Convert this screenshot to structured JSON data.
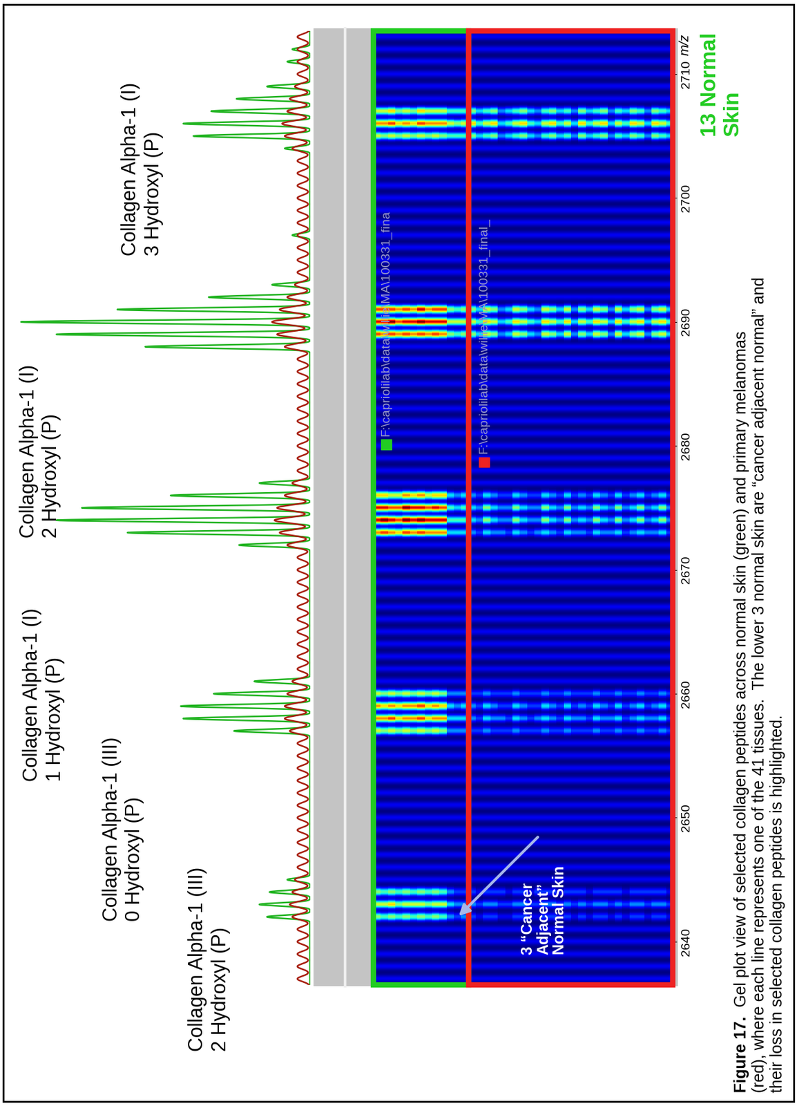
{
  "chart_data": {
    "type": "spectrum",
    "x_label": "m/z",
    "xlim": [
      2636.5,
      2713.5
    ],
    "xticks": [
      2640,
      2650,
      2660,
      2670,
      2680,
      2690,
      2700,
      2710
    ],
    "ylim": [
      0,
      120
    ],
    "tick_labels": "x",
    "annotations": [
      {
        "lines": [
          "Collagen Alpha-1 (III)",
          "2 Hydroxyl (P)"
        ]
      },
      {
        "lines": [
          "Collagen Alpha-1 (III)",
          "0 Hydroxyl (P)"
        ]
      },
      {
        "lines": [
          "Collagen Alpha-1 (I)",
          "1 Hydroxyl (P)"
        ]
      },
      {
        "lines": [
          "Collagen Alpha-1 (I)",
          "2 Hydroxyl (P)"
        ]
      },
      {
        "lines": [
          "Collagen Alpha-1 (I)",
          "3 Hydroxyl (P)"
        ]
      }
    ],
    "series": [
      {
        "name": "normal skin",
        "color": "#22b422",
        "x": [
          2642,
          2643,
          2644,
          2645,
          2657,
          2658,
          2659,
          2660,
          2661,
          2672,
          2673,
          2674,
          2675,
          2676,
          2677,
          2688,
          2689,
          2690,
          2691,
          2692,
          2693,
          2697,
          2704,
          2705,
          2706,
          2707,
          2708,
          2709,
          2711,
          2712
        ],
        "values": [
          17,
          20,
          16,
          9,
          30,
          50,
          51,
          38,
          22,
          28,
          72,
          100,
          90,
          55,
          20,
          65,
          100,
          114,
          76,
          40,
          15,
          7,
          10,
          46,
          50,
          39,
          29,
          17,
          9,
          7
        ]
      },
      {
        "name": "primary melanomas",
        "color": "#a8200f",
        "x": [
          2637,
          2638,
          2639,
          2640,
          2641,
          2642,
          2643,
          2644,
          2645,
          2646,
          2647,
          2648,
          2649,
          2650,
          2651,
          2652,
          2653,
          2654,
          2655,
          2656,
          2657,
          2658,
          2659,
          2660,
          2661,
          2662,
          2663,
          2664,
          2665,
          2666,
          2667,
          2668,
          2669,
          2670,
          2671,
          2672,
          2673,
          2674,
          2675,
          2676,
          2677,
          2678,
          2679,
          2680,
          2681,
          2682,
          2683,
          2684,
          2685,
          2686,
          2687,
          2688,
          2689,
          2690,
          2691,
          2692,
          2693,
          2694,
          2695,
          2696,
          2697,
          2698,
          2699,
          2700,
          2701,
          2702,
          2703,
          2704,
          2705,
          2706,
          2707,
          2708,
          2709,
          2710,
          2711,
          2712,
          2713
        ],
        "values": [
          5,
          5,
          5,
          5,
          5,
          7,
          8,
          7,
          6,
          5,
          5,
          5,
          5,
          5,
          5,
          5,
          5,
          5,
          5,
          5,
          8,
          10,
          10,
          9,
          7,
          5,
          5,
          5,
          5,
          5,
          5,
          5,
          5,
          5,
          5,
          9,
          12,
          14,
          13,
          10,
          7,
          5,
          5,
          5,
          5,
          5,
          5,
          5,
          5,
          5,
          5,
          10,
          13,
          15,
          12,
          9,
          6,
          5,
          5,
          5,
          5,
          5,
          5,
          5,
          5,
          5,
          5,
          7,
          10,
          11,
          9,
          8,
          6,
          5,
          5,
          5,
          5
        ]
      }
    ],
    "gel": {
      "groups": [
        {
          "lines": [
            "13 Normal",
            "Skin"
          ],
          "color": "#22cc22",
          "count": 13
        },
        {
          "color": "#ee2222",
          "count": 28
        }
      ],
      "callout": {
        "lines": [
          "3 “Cancer",
          "Adjacent”",
          "Normal Skin"
        ],
        "count": 3
      },
      "path_labels": [
        "F:\\capriolilab\\data\\willie\\MA\\100331_fina",
        "F:\\capriolilab\\data\\willie\\MA\\100331_final_"
      ],
      "color_range": [
        0,
        1.2
      ],
      "band_x": [
        2642,
        2643,
        2644,
        2657,
        2658,
        2659,
        2660,
        2673,
        2674,
        2675,
        2676,
        2689,
        2690,
        2691,
        2705,
        2706,
        2707
      ],
      "cells": [
        [
          0.5,
          0.6,
          0.5,
          0.6,
          0.8,
          0.8,
          0.6,
          0.8,
          1.0,
          1.0,
          0.7,
          0.9,
          1.0,
          0.9,
          0.6,
          0.8,
          0.6
        ],
        [
          0.4,
          0.6,
          0.4,
          0.5,
          0.8,
          0.7,
          0.5,
          0.9,
          1.1,
          1.0,
          0.7,
          0.8,
          1.0,
          0.9,
          0.5,
          0.8,
          0.6
        ],
        [
          0.5,
          0.7,
          0.5,
          0.6,
          0.9,
          0.8,
          0.6,
          0.8,
          1.0,
          0.9,
          0.6,
          0.9,
          1.1,
          0.9,
          0.6,
          0.9,
          0.7
        ],
        [
          0.4,
          0.5,
          0.4,
          0.5,
          0.7,
          0.7,
          0.5,
          0.7,
          0.9,
          0.9,
          0.6,
          0.8,
          0.9,
          0.8,
          0.5,
          0.7,
          0.5
        ],
        [
          0.5,
          0.6,
          0.5,
          0.6,
          0.8,
          0.8,
          0.6,
          0.9,
          1.1,
          1.1,
          0.8,
          0.9,
          1.0,
          0.9,
          0.6,
          0.8,
          0.6
        ],
        [
          0.4,
          0.6,
          0.4,
          0.5,
          0.8,
          0.8,
          0.5,
          0.8,
          1.0,
          1.0,
          0.7,
          0.8,
          1.0,
          0.8,
          0.5,
          0.7,
          0.5
        ],
        [
          0.5,
          0.6,
          0.5,
          0.6,
          0.9,
          0.9,
          0.6,
          0.9,
          1.1,
          1.0,
          0.8,
          0.9,
          1.1,
          1.0,
          0.6,
          0.9,
          0.7
        ],
        [
          0.4,
          0.5,
          0.4,
          0.5,
          0.7,
          0.7,
          0.5,
          0.8,
          1.0,
          0.9,
          0.6,
          0.8,
          1.0,
          0.8,
          0.5,
          0.8,
          0.6
        ],
        [
          0.5,
          0.6,
          0.5,
          0.6,
          0.8,
          0.8,
          0.6,
          0.8,
          1.0,
          1.0,
          0.7,
          0.9,
          1.0,
          0.9,
          0.6,
          0.8,
          0.6
        ],
        [
          0.4,
          0.6,
          0.4,
          0.5,
          0.8,
          0.7,
          0.5,
          0.8,
          1.0,
          0.9,
          0.7,
          0.8,
          1.0,
          0.9,
          0.5,
          0.8,
          0.6
        ],
        [
          0.2,
          0.3,
          0.2,
          0.2,
          0.3,
          0.3,
          0.2,
          0.3,
          0.4,
          0.4,
          0.3,
          0.5,
          0.6,
          0.5,
          0.4,
          0.6,
          0.4
        ],
        [
          0.1,
          0.2,
          0.1,
          0.2,
          0.3,
          0.2,
          0.2,
          0.3,
          0.4,
          0.3,
          0.2,
          0.4,
          0.6,
          0.4,
          0.4,
          0.5,
          0.4
        ],
        [
          0.2,
          0.2,
          0.1,
          0.2,
          0.3,
          0.3,
          0.2,
          0.3,
          0.4,
          0.4,
          0.3,
          0.5,
          0.6,
          0.5,
          0.4,
          0.6,
          0.4
        ],
        [
          0.1,
          0.2,
          0.1,
          0.1,
          0.2,
          0.2,
          0.1,
          0.2,
          0.3,
          0.3,
          0.2,
          0.5,
          0.6,
          0.5,
          0.5,
          0.7,
          0.5
        ],
        [
          0.0,
          0.1,
          0.0,
          0.1,
          0.1,
          0.1,
          0.1,
          0.1,
          0.2,
          0.2,
          0.1,
          0.3,
          0.4,
          0.3,
          0.3,
          0.4,
          0.3
        ],
        [
          0.1,
          0.2,
          0.1,
          0.2,
          0.3,
          0.3,
          0.2,
          0.3,
          0.5,
          0.5,
          0.3,
          0.6,
          0.7,
          0.6,
          0.4,
          0.6,
          0.4
        ],
        [
          0.1,
          0.2,
          0.1,
          0.1,
          0.2,
          0.2,
          0.1,
          0.2,
          0.3,
          0.3,
          0.2,
          0.5,
          0.6,
          0.5,
          0.5,
          0.7,
          0.5
        ],
        [
          0.0,
          0.1,
          0.1,
          0.1,
          0.2,
          0.1,
          0.1,
          0.2,
          0.2,
          0.2,
          0.1,
          0.2,
          0.3,
          0.2,
          0.2,
          0.3,
          0.2
        ],
        [
          0.0,
          0.1,
          0.0,
          0.1,
          0.1,
          0.1,
          0.1,
          0.1,
          0.2,
          0.2,
          0.1,
          0.3,
          0.4,
          0.3,
          0.3,
          0.4,
          0.3
        ],
        [
          0.1,
          0.2,
          0.1,
          0.2,
          0.3,
          0.3,
          0.2,
          0.3,
          0.5,
          0.5,
          0.3,
          0.6,
          0.7,
          0.6,
          0.4,
          0.6,
          0.4
        ],
        [
          0.1,
          0.2,
          0.1,
          0.1,
          0.2,
          0.2,
          0.1,
          0.2,
          0.3,
          0.3,
          0.2,
          0.5,
          0.6,
          0.5,
          0.5,
          0.7,
          0.5
        ],
        [
          0.0,
          0.1,
          0.0,
          0.1,
          0.1,
          0.1,
          0.1,
          0.1,
          0.2,
          0.2,
          0.1,
          0.3,
          0.4,
          0.3,
          0.3,
          0.4,
          0.3
        ],
        [
          0.0,
          0.1,
          0.1,
          0.1,
          0.2,
          0.1,
          0.1,
          0.2,
          0.2,
          0.2,
          0.1,
          0.2,
          0.3,
          0.2,
          0.2,
          0.3,
          0.2
        ],
        [
          0.1,
          0.2,
          0.1,
          0.2,
          0.3,
          0.3,
          0.2,
          0.3,
          0.5,
          0.5,
          0.3,
          0.6,
          0.7,
          0.6,
          0.4,
          0.6,
          0.4
        ],
        [
          0.1,
          0.2,
          0.1,
          0.1,
          0.2,
          0.2,
          0.1,
          0.2,
          0.3,
          0.3,
          0.2,
          0.5,
          0.6,
          0.5,
          0.5,
          0.7,
          0.5
        ],
        [
          0.0,
          0.1,
          0.0,
          0.1,
          0.1,
          0.1,
          0.1,
          0.1,
          0.2,
          0.2,
          0.1,
          0.3,
          0.4,
          0.3,
          0.3,
          0.4,
          0.3
        ],
        [
          0.1,
          0.2,
          0.1,
          0.2,
          0.3,
          0.3,
          0.2,
          0.3,
          0.5,
          0.5,
          0.3,
          0.6,
          0.7,
          0.6,
          0.4,
          0.6,
          0.4
        ],
        [
          0.0,
          0.1,
          0.1,
          0.1,
          0.2,
          0.1,
          0.1,
          0.2,
          0.2,
          0.2,
          0.1,
          0.2,
          0.3,
          0.2,
          0.2,
          0.3,
          0.2
        ],
        [
          0.1,
          0.2,
          0.1,
          0.1,
          0.2,
          0.2,
          0.1,
          0.2,
          0.3,
          0.3,
          0.2,
          0.5,
          0.6,
          0.5,
          0.5,
          0.7,
          0.5
        ],
        [
          0.0,
          0.1,
          0.0,
          0.1,
          0.1,
          0.1,
          0.1,
          0.1,
          0.2,
          0.2,
          0.1,
          0.3,
          0.4,
          0.3,
          0.3,
          0.4,
          0.3
        ],
        [
          0.1,
          0.2,
          0.1,
          0.2,
          0.3,
          0.3,
          0.2,
          0.3,
          0.5,
          0.5,
          0.3,
          0.6,
          0.7,
          0.6,
          0.4,
          0.6,
          0.4
        ],
        [
          0.1,
          0.2,
          0.1,
          0.1,
          0.2,
          0.2,
          0.1,
          0.2,
          0.3,
          0.3,
          0.2,
          0.5,
          0.6,
          0.5,
          0.5,
          0.7,
          0.5
        ],
        [
          0.0,
          0.1,
          0.1,
          0.1,
          0.2,
          0.1,
          0.1,
          0.2,
          0.2,
          0.2,
          0.1,
          0.2,
          0.3,
          0.2,
          0.2,
          0.3,
          0.2
        ],
        [
          0.1,
          0.2,
          0.1,
          0.2,
          0.3,
          0.3,
          0.2,
          0.3,
          0.5,
          0.5,
          0.3,
          0.6,
          0.7,
          0.6,
          0.4,
          0.6,
          0.4
        ],
        [
          0.0,
          0.1,
          0.0,
          0.1,
          0.1,
          0.1,
          0.1,
          0.1,
          0.2,
          0.2,
          0.1,
          0.3,
          0.4,
          0.3,
          0.3,
          0.4,
          0.3
        ],
        [
          0.1,
          0.2,
          0.1,
          0.1,
          0.2,
          0.2,
          0.1,
          0.2,
          0.3,
          0.3,
          0.2,
          0.5,
          0.6,
          0.5,
          0.5,
          0.7,
          0.5
        ],
        [
          0.1,
          0.2,
          0.1,
          0.2,
          0.3,
          0.3,
          0.2,
          0.3,
          0.5,
          0.5,
          0.3,
          0.6,
          0.7,
          0.6,
          0.4,
          0.6,
          0.4
        ],
        [
          0.0,
          0.1,
          0.1,
          0.1,
          0.2,
          0.1,
          0.1,
          0.2,
          0.2,
          0.2,
          0.1,
          0.2,
          0.3,
          0.2,
          0.2,
          0.3,
          0.2
        ],
        [
          0.1,
          0.2,
          0.1,
          0.1,
          0.2,
          0.2,
          0.1,
          0.2,
          0.3,
          0.3,
          0.2,
          0.5,
          0.6,
          0.5,
          0.5,
          0.7,
          0.5
        ],
        [
          0.1,
          0.2,
          0.1,
          0.2,
          0.3,
          0.3,
          0.2,
          0.3,
          0.5,
          0.5,
          0.3,
          0.6,
          0.7,
          0.6,
          0.4,
          0.6,
          0.4
        ],
        [
          0.0,
          0.1,
          0.0,
          0.1,
          0.1,
          0.1,
          0.1,
          0.1,
          0.2,
          0.2,
          0.1,
          0.3,
          0.4,
          0.3,
          0.3,
          0.4,
          0.3
        ]
      ]
    },
    "caption": {
      "label": "Figure 17.",
      "lines": [
        "Gel plot view of selected collagen peptides across normal skin (green) and primary melanomas",
        "(red), where each line represents one of the 41 tissues.  The lower 3 normal skin are “cancer adjacent normal” and",
        "their loss in selected collagen peptides is highlighted."
      ]
    }
  }
}
